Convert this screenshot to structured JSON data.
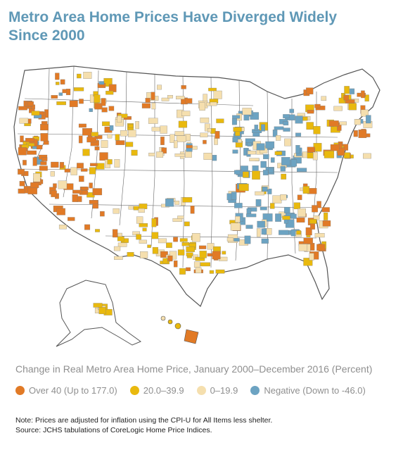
{
  "title": {
    "line1": "Metro Area Home Prices Have Diverged Widely",
    "line2": "Since 2000"
  },
  "legend": {
    "title": "Change in Real Metro Area Home Price, January 2000–December 2016 (Percent)",
    "items": [
      {
        "label": "Over 40 (Up to 177.0)",
        "color": "#e17a26"
      },
      {
        "label": "20.0–39.9",
        "color": "#e9b90e"
      },
      {
        "label": "0–19.9",
        "color": "#f5dfae"
      },
      {
        "label": "Negative (Down to -46.0)",
        "color": "#6ca3c2"
      }
    ]
  },
  "notes": {
    "note": "Note: Prices are adjusted for inflation using the CPI-U for All Items less shelter.",
    "source": "Source: JCHS tabulations of CoreLogic Home Price Indices."
  },
  "colors": {
    "title": "#5f98b6",
    "state_border": "#555555",
    "over40": "#e17a26",
    "from20to40": "#e9b90e",
    "from0to20": "#f5dfae",
    "negative": "#6ca3c2"
  }
}
